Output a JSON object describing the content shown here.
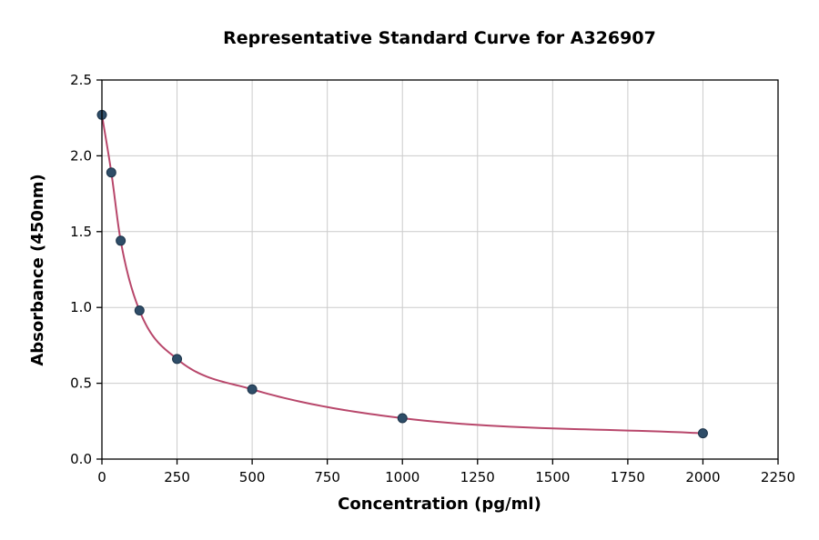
{
  "chart_data": {
    "type": "scatter",
    "title": "Representative Standard Curve for A326907",
    "xlabel": "Concentration (pg/ml)",
    "ylabel": "Absorbance (450nm)",
    "xlim": [
      0,
      2250
    ],
    "ylim": [
      0,
      2.5
    ],
    "xticks": [
      0,
      250,
      500,
      750,
      1000,
      1250,
      1500,
      1750,
      2000,
      2250
    ],
    "xtick_labels": [
      "0",
      "250",
      "500",
      "750",
      "1000",
      "1250",
      "1500",
      "1750",
      "2000",
      "2250"
    ],
    "yticks": [
      0.0,
      0.5,
      1.0,
      1.5,
      2.0,
      2.5
    ],
    "ytick_labels": [
      "0.0",
      "0.5",
      "1.0",
      "1.5",
      "2.0",
      "2.5"
    ],
    "grid": true,
    "legend": "none",
    "series": [
      {
        "name": "standards",
        "marker": "circle",
        "x": [
          0,
          31.25,
          62.5,
          125,
          250,
          500,
          1000,
          2000
        ],
        "y": [
          2.27,
          1.89,
          1.44,
          0.98,
          0.66,
          0.46,
          0.27,
          0.17
        ]
      }
    ],
    "fit_curve": "4PL through standards",
    "colors": {
      "point_fill": "#2e4d68",
      "point_edge": "#1c3349",
      "curve": "#b8476b",
      "grid": "#cccccc",
      "frame": "#000000",
      "background": "#ffffff"
    }
  }
}
